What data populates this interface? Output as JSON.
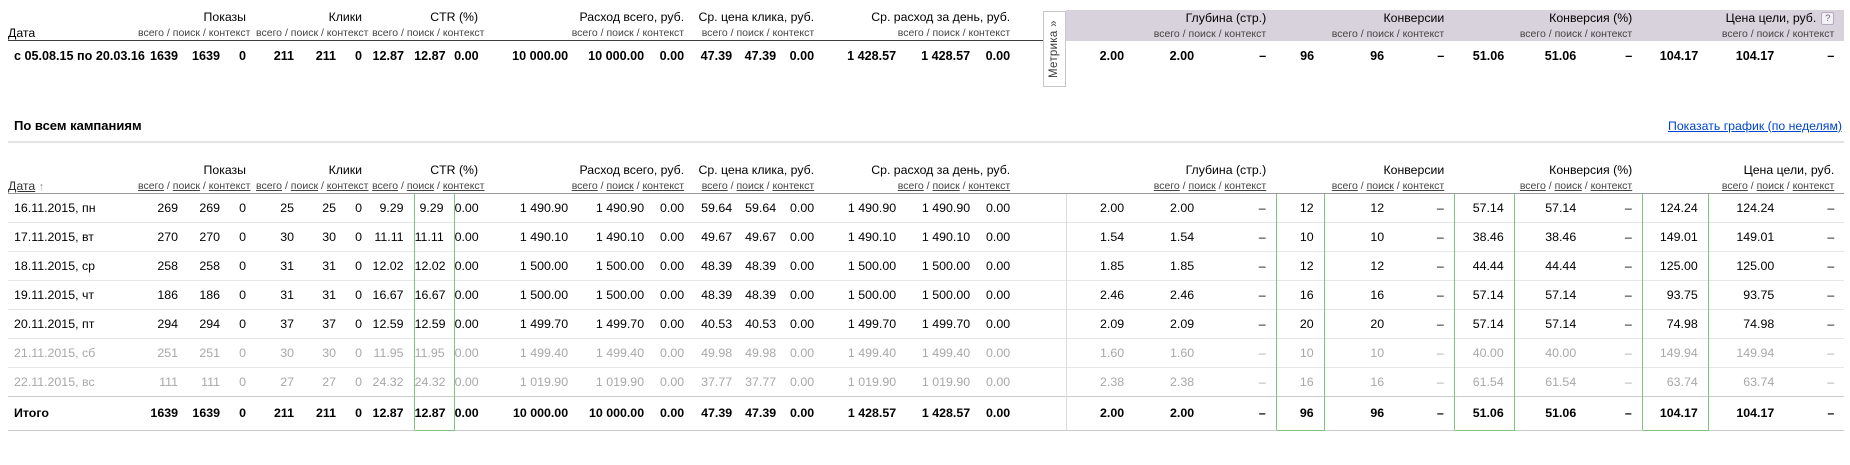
{
  "colors": {
    "lavender_header": "#d8d2dd",
    "highlight_green": "#7cc47f",
    "link_blue": "#0044cc",
    "muted_gray": "#a8a8a8"
  },
  "subcolumns": [
    "всего",
    "поиск",
    "контекст"
  ],
  "subcolumn_separator": " / ",
  "groups": [
    {
      "label": "Показы",
      "section": "direct"
    },
    {
      "label": "Клики",
      "section": "direct"
    },
    {
      "label": "CTR (%)",
      "section": "direct"
    },
    {
      "label": "Расход всего, руб.",
      "section": "direct"
    },
    {
      "label": "Ср. цена клика, руб.",
      "section": "direct"
    },
    {
      "label": "Ср. расход за день, руб.",
      "section": "direct"
    },
    {
      "label": "Глубина (стр.)",
      "section": "metrika"
    },
    {
      "label": "Конверсии",
      "section": "metrika"
    },
    {
      "label": "Конверсия (%)",
      "section": "metrika"
    },
    {
      "label": "Цена цели, руб.",
      "section": "metrika",
      "has_help_icon": true
    }
  ],
  "summary": {
    "date_header": "Дата",
    "metrika_tab_label": "Метрика »",
    "help_icon": "?",
    "period": "с 05.08.15 по 20.03.16",
    "values": [
      "1639",
      "1639",
      "0",
      "211",
      "211",
      "0",
      "12.87",
      "12.87",
      "0.00",
      "10 000.00",
      "10 000.00",
      "0.00",
      "47.39",
      "47.39",
      "0.00",
      "1 428.57",
      "1 428.57",
      "0.00",
      "2.00",
      "2.00",
      "–",
      "96",
      "96",
      "–",
      "51.06",
      "51.06",
      "–",
      "104.17",
      "104.17",
      "–"
    ]
  },
  "campaigns_section": {
    "title": "По всем кампаниям",
    "chart_link": "Показать график (по неделям)"
  },
  "table": {
    "date_header": "Дата",
    "sort_arrow": "↑",
    "highlighted_value_indexes": [
      7,
      21,
      24,
      27
    ],
    "rows": [
      {
        "date": "16.11.2015, пн",
        "muted": false,
        "values": [
          "269",
          "269",
          "0",
          "25",
          "25",
          "0",
          "9.29",
          "9.29",
          "0.00",
          "1 490.90",
          "1 490.90",
          "0.00",
          "59.64",
          "59.64",
          "0.00",
          "1 490.90",
          "1 490.90",
          "0.00",
          "2.00",
          "2.00",
          "–",
          "12",
          "12",
          "–",
          "57.14",
          "57.14",
          "–",
          "124.24",
          "124.24",
          "–"
        ]
      },
      {
        "date": "17.11.2015, вт",
        "muted": false,
        "values": [
          "270",
          "270",
          "0",
          "30",
          "30",
          "0",
          "11.11",
          "11.11",
          "0.00",
          "1 490.10",
          "1 490.10",
          "0.00",
          "49.67",
          "49.67",
          "0.00",
          "1 490.10",
          "1 490.10",
          "0.00",
          "1.54",
          "1.54",
          "–",
          "10",
          "10",
          "–",
          "38.46",
          "38.46",
          "–",
          "149.01",
          "149.01",
          "–"
        ]
      },
      {
        "date": "18.11.2015, ср",
        "muted": false,
        "values": [
          "258",
          "258",
          "0",
          "31",
          "31",
          "0",
          "12.02",
          "12.02",
          "0.00",
          "1 500.00",
          "1 500.00",
          "0.00",
          "48.39",
          "48.39",
          "0.00",
          "1 500.00",
          "1 500.00",
          "0.00",
          "1.85",
          "1.85",
          "–",
          "12",
          "12",
          "–",
          "44.44",
          "44.44",
          "–",
          "125.00",
          "125.00",
          "–"
        ]
      },
      {
        "date": "19.11.2015, чт",
        "muted": false,
        "values": [
          "186",
          "186",
          "0",
          "31",
          "31",
          "0",
          "16.67",
          "16.67",
          "0.00",
          "1 500.00",
          "1 500.00",
          "0.00",
          "48.39",
          "48.39",
          "0.00",
          "1 500.00",
          "1 500.00",
          "0.00",
          "2.46",
          "2.46",
          "–",
          "16",
          "16",
          "–",
          "57.14",
          "57.14",
          "–",
          "93.75",
          "93.75",
          "–"
        ]
      },
      {
        "date": "20.11.2015, пт",
        "muted": false,
        "values": [
          "294",
          "294",
          "0",
          "37",
          "37",
          "0",
          "12.59",
          "12.59",
          "0.00",
          "1 499.70",
          "1 499.70",
          "0.00",
          "40.53",
          "40.53",
          "0.00",
          "1 499.70",
          "1 499.70",
          "0.00",
          "2.09",
          "2.09",
          "–",
          "20",
          "20",
          "–",
          "57.14",
          "57.14",
          "–",
          "74.98",
          "74.98",
          "–"
        ]
      },
      {
        "date": "21.11.2015, сб",
        "muted": true,
        "values": [
          "251",
          "251",
          "0",
          "30",
          "30",
          "0",
          "11.95",
          "11.95",
          "0.00",
          "1 499.40",
          "1 499.40",
          "0.00",
          "49.98",
          "49.98",
          "0.00",
          "1 499.40",
          "1 499.40",
          "0.00",
          "1.60",
          "1.60",
          "–",
          "10",
          "10",
          "–",
          "40.00",
          "40.00",
          "–",
          "149.94",
          "149.94",
          "–"
        ]
      },
      {
        "date": "22.11.2015, вс",
        "muted": true,
        "values": [
          "111",
          "111",
          "0",
          "27",
          "27",
          "0",
          "24.32",
          "24.32",
          "0.00",
          "1 019.90",
          "1 019.90",
          "0.00",
          "37.77",
          "37.77",
          "0.00",
          "1 019.90",
          "1 019.90",
          "0.00",
          "2.38",
          "2.38",
          "–",
          "16",
          "16",
          "–",
          "61.54",
          "61.54",
          "–",
          "63.74",
          "63.74",
          "–"
        ]
      }
    ],
    "total_row": {
      "date": "Итого",
      "values": [
        "1639",
        "1639",
        "0",
        "211",
        "211",
        "0",
        "12.87",
        "12.87",
        "0.00",
        "10 000.00",
        "10 000.00",
        "0.00",
        "47.39",
        "47.39",
        "0.00",
        "1 428.57",
        "1 428.57",
        "0.00",
        "2.00",
        "2.00",
        "–",
        "96",
        "96",
        "–",
        "51.06",
        "51.06",
        "–",
        "104.17",
        "104.17",
        "–"
      ]
    }
  }
}
